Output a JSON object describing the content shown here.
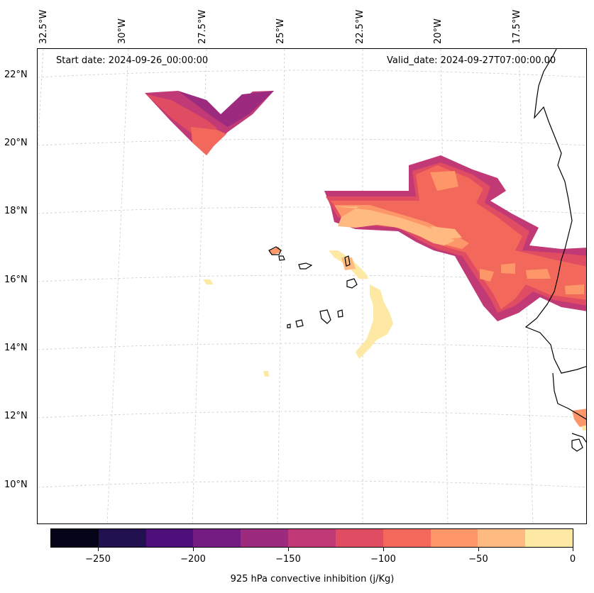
{
  "header": {
    "start_date": "Start date: 2024-09-26_00:00:00",
    "valid_date": "Valid_date: 2024-09-27T07:00:00.00"
  },
  "longitude_labels": [
    "32.5°W",
    "30°W",
    "27.5°W",
    "25°W",
    "22.5°W",
    "20°W",
    "17.5°W"
  ],
  "latitude_labels": [
    "22°N",
    "20°N",
    "18°N",
    "16°N",
    "14°N",
    "12°N",
    "10°N"
  ],
  "colorbar": {
    "title": "925 hPa convective inhibition (j/Kg)",
    "tick_labels": [
      "−250",
      "−200",
      "−150",
      "−100",
      "−50",
      "0"
    ],
    "colors": [
      "#050418",
      "#221150",
      "#4f0f7a",
      "#751c83",
      "#9c2b7f",
      "#c13a75",
      "#e04c62",
      "#f2695c",
      "#fd9668",
      "#feba80",
      "#fde8a4"
    ]
  },
  "map": {
    "fill_colors": {
      "dark_purple": "#9c2b7f",
      "magenta": "#c13a75",
      "red_pink": "#e04c62",
      "salmon": "#f2695c",
      "orange": "#fd9668",
      "light_orange": "#feba80",
      "pale_yellow": "#fde8a4"
    },
    "coastline_color": "#000000",
    "gridline_color": "#cccccc"
  }
}
